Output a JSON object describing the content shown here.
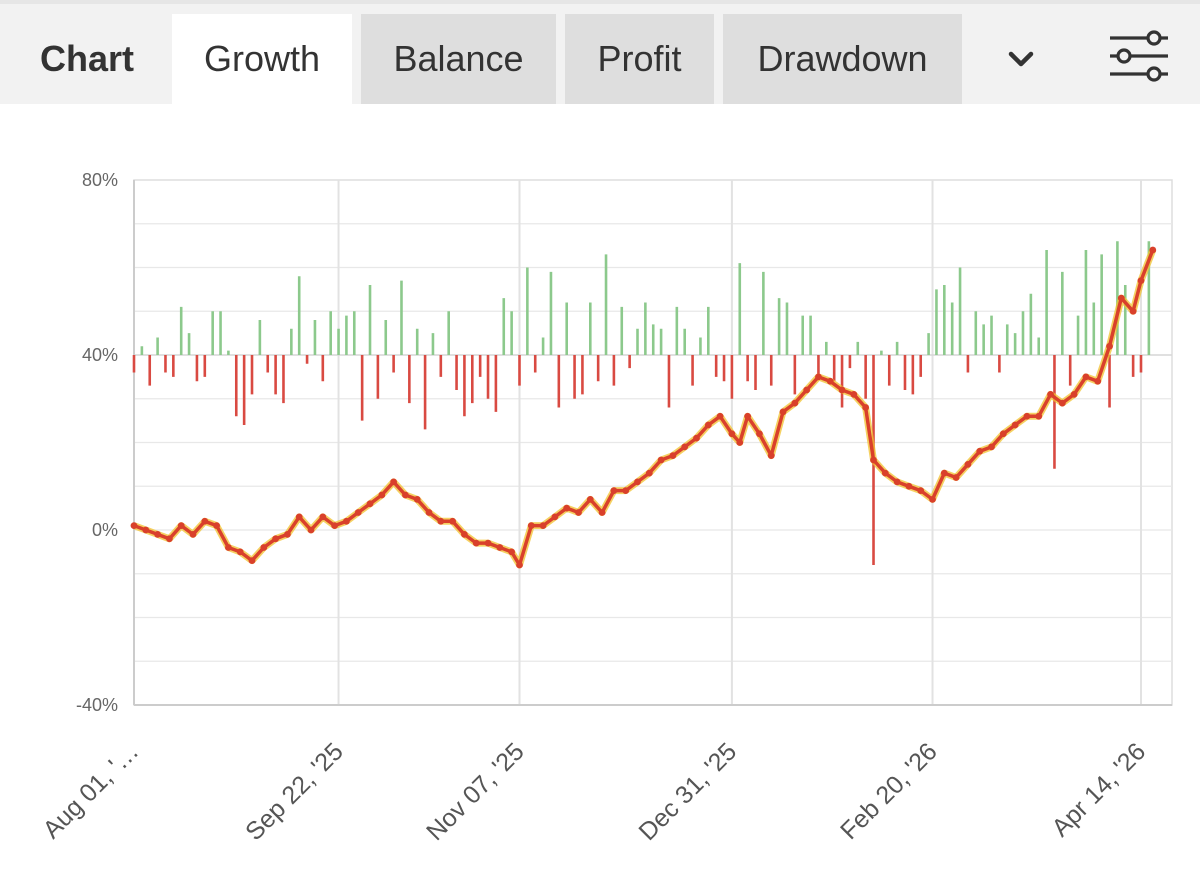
{
  "header": {
    "chart_label": "Chart",
    "tabs": [
      {
        "label": "Growth",
        "active": true
      },
      {
        "label": "Balance",
        "active": false
      },
      {
        "label": "Profit",
        "active": false
      },
      {
        "label": "Drawdown",
        "active": false
      }
    ],
    "more_icon": "chevron-down-icon",
    "settings_icon": "sliders-icon"
  },
  "colors": {
    "growth_line": "#d9402b",
    "equity_line": "#f2c12e",
    "positive_bar": "#8cc98c",
    "negative_bar": "#d94a42",
    "grid": "#e8e8e8"
  },
  "chart_data": {
    "type": "line",
    "ylim": [
      -40,
      80
    ],
    "y_ticks": [
      "80%",
      "40%",
      "0%",
      "-40%"
    ],
    "y_tick_values": [
      80,
      40,
      0,
      -40
    ],
    "x_ticks": [
      "Aug 01, '…",
      "Sep 22, '25",
      "Nov 07, '25",
      "Dec 31, '25",
      "Feb 20, '26",
      "Apr 14, '26"
    ],
    "x_tick_dates": [
      "2025-08-01",
      "2025-09-22",
      "2025-11-07",
      "2025-12-31",
      "2026-02-20",
      "2026-04-14"
    ],
    "x_range": [
      "2025-08-01",
      "2026-04-17"
    ],
    "grid": true,
    "series": [
      {
        "points": [
          [
            "2025-08-01",
            1
          ],
          [
            "2025-08-04",
            0
          ],
          [
            "2025-08-07",
            -1
          ],
          [
            "2025-08-10",
            -2
          ],
          [
            "2025-08-13",
            1
          ],
          [
            "2025-08-16",
            -1
          ],
          [
            "2025-08-19",
            2
          ],
          [
            "2025-08-22",
            1
          ],
          [
            "2025-08-25",
            -4
          ],
          [
            "2025-08-28",
            -5
          ],
          [
            "2025-08-31",
            -7
          ],
          [
            "2025-09-03",
            -4
          ],
          [
            "2025-09-06",
            -2
          ],
          [
            "2025-09-09",
            -1
          ],
          [
            "2025-09-12",
            3
          ],
          [
            "2025-09-15",
            0
          ],
          [
            "2025-09-18",
            3
          ],
          [
            "2025-09-21",
            1
          ],
          [
            "2025-09-24",
            2
          ],
          [
            "2025-09-27",
            4
          ],
          [
            "2025-09-30",
            6
          ],
          [
            "2025-10-03",
            8
          ],
          [
            "2025-10-06",
            11
          ],
          [
            "2025-10-09",
            8
          ],
          [
            "2025-10-12",
            7
          ],
          [
            "2025-10-15",
            4
          ],
          [
            "2025-10-18",
            2
          ],
          [
            "2025-10-21",
            2
          ],
          [
            "2025-10-24",
            -1
          ],
          [
            "2025-10-27",
            -3
          ],
          [
            "2025-10-30",
            -3
          ],
          [
            "2025-11-02",
            -4
          ],
          [
            "2025-11-05",
            -5
          ],
          [
            "2025-11-07",
            -8
          ],
          [
            "2025-11-10",
            1
          ],
          [
            "2025-11-13",
            1
          ],
          [
            "2025-11-16",
            3
          ],
          [
            "2025-11-19",
            5
          ],
          [
            "2025-11-22",
            4
          ],
          [
            "2025-11-25",
            7
          ],
          [
            "2025-11-28",
            4
          ],
          [
            "2025-12-01",
            9
          ],
          [
            "2025-12-04",
            9
          ],
          [
            "2025-12-07",
            11
          ],
          [
            "2025-12-10",
            13
          ],
          [
            "2025-12-13",
            16
          ],
          [
            "2025-12-16",
            17
          ],
          [
            "2025-12-19",
            19
          ],
          [
            "2025-12-22",
            21
          ],
          [
            "2025-12-25",
            24
          ],
          [
            "2025-12-28",
            26
          ],
          [
            "2025-12-31",
            22
          ],
          [
            "2026-01-02",
            20
          ],
          [
            "2026-01-04",
            26
          ],
          [
            "2026-01-07",
            22
          ],
          [
            "2026-01-10",
            17
          ],
          [
            "2026-01-13",
            27
          ],
          [
            "2026-01-16",
            29
          ],
          [
            "2026-01-19",
            32
          ],
          [
            "2026-01-22",
            35
          ],
          [
            "2026-01-25",
            34
          ],
          [
            "2026-01-28",
            32
          ],
          [
            "2026-01-31",
            31
          ],
          [
            "2026-02-03",
            28
          ],
          [
            "2026-02-05",
            16
          ],
          [
            "2026-02-08",
            13
          ],
          [
            "2026-02-11",
            11
          ],
          [
            "2026-02-14",
            10
          ],
          [
            "2026-02-17",
            9
          ],
          [
            "2026-02-20",
            7
          ],
          [
            "2026-02-23",
            13
          ],
          [
            "2026-02-26",
            12
          ],
          [
            "2026-03-01",
            15
          ],
          [
            "2026-03-04",
            18
          ],
          [
            "2026-03-07",
            19
          ],
          [
            "2026-03-10",
            22
          ],
          [
            "2026-03-13",
            24
          ],
          [
            "2026-03-16",
            26
          ],
          [
            "2026-03-19",
            26
          ],
          [
            "2026-03-22",
            31
          ],
          [
            "2026-03-25",
            29
          ],
          [
            "2026-03-28",
            31
          ],
          [
            "2026-03-31",
            35
          ],
          [
            "2026-04-03",
            34
          ],
          [
            "2026-04-06",
            42
          ],
          [
            "2026-04-09",
            53
          ],
          [
            "2026-04-12",
            50
          ],
          [
            "2026-04-14",
            57
          ],
          [
            "2026-04-17",
            64
          ]
        ]
      }
    ],
    "bars": [
      [
        "2025-08-01",
        -4
      ],
      [
        "2025-08-03",
        2
      ],
      [
        "2025-08-05",
        -7
      ],
      [
        "2025-08-07",
        4
      ],
      [
        "2025-08-09",
        -4
      ],
      [
        "2025-08-11",
        -5
      ],
      [
        "2025-08-13",
        11
      ],
      [
        "2025-08-15",
        5
      ],
      [
        "2025-08-17",
        -6
      ],
      [
        "2025-08-19",
        -5
      ],
      [
        "2025-08-21",
        10
      ],
      [
        "2025-08-23",
        10
      ],
      [
        "2025-08-25",
        1
      ],
      [
        "2025-08-27",
        -14
      ],
      [
        "2025-08-29",
        -16
      ],
      [
        "2025-08-31",
        -9
      ],
      [
        "2025-09-02",
        8
      ],
      [
        "2025-09-04",
        -4
      ],
      [
        "2025-09-06",
        -9
      ],
      [
        "2025-09-08",
        -11
      ],
      [
        "2025-09-10",
        6
      ],
      [
        "2025-09-12",
        18
      ],
      [
        "2025-09-14",
        -2
      ],
      [
        "2025-09-16",
        8
      ],
      [
        "2025-09-18",
        -6
      ],
      [
        "2025-09-20",
        10
      ],
      [
        "2025-09-22",
        6
      ],
      [
        "2025-09-24",
        9
      ],
      [
        "2025-09-26",
        10
      ],
      [
        "2025-09-28",
        -15
      ],
      [
        "2025-09-30",
        16
      ],
      [
        "2025-10-02",
        -10
      ],
      [
        "2025-10-04",
        8
      ],
      [
        "2025-10-06",
        -4
      ],
      [
        "2025-10-08",
        17
      ],
      [
        "2025-10-10",
        -11
      ],
      [
        "2025-10-12",
        6
      ],
      [
        "2025-10-14",
        -17
      ],
      [
        "2025-10-16",
        5
      ],
      [
        "2025-10-18",
        -5
      ],
      [
        "2025-10-20",
        10
      ],
      [
        "2025-10-22",
        -8
      ],
      [
        "2025-10-24",
        -14
      ],
      [
        "2025-10-26",
        -11
      ],
      [
        "2025-10-28",
        -5
      ],
      [
        "2025-10-30",
        -10
      ],
      [
        "2025-11-01",
        -13
      ],
      [
        "2025-11-03",
        13
      ],
      [
        "2025-11-05",
        10
      ],
      [
        "2025-11-07",
        -7
      ],
      [
        "2025-11-09",
        20
      ],
      [
        "2025-11-11",
        -4
      ],
      [
        "2025-11-13",
        4
      ],
      [
        "2025-11-15",
        19
      ],
      [
        "2025-11-17",
        -12
      ],
      [
        "2025-11-19",
        12
      ],
      [
        "2025-11-21",
        -10
      ],
      [
        "2025-11-23",
        -9
      ],
      [
        "2025-11-25",
        12
      ],
      [
        "2025-11-27",
        -6
      ],
      [
        "2025-11-29",
        23
      ],
      [
        "2025-12-01",
        -7
      ],
      [
        "2025-12-03",
        11
      ],
      [
        "2025-12-05",
        -3
      ],
      [
        "2025-12-07",
        6
      ],
      [
        "2025-12-09",
        12
      ],
      [
        "2025-12-11",
        7
      ],
      [
        "2025-12-13",
        6
      ],
      [
        "2025-12-15",
        -12
      ],
      [
        "2025-12-17",
        11
      ],
      [
        "2025-12-19",
        6
      ],
      [
        "2025-12-21",
        -7
      ],
      [
        "2025-12-23",
        4
      ],
      [
        "2025-12-25",
        11
      ],
      [
        "2025-12-27",
        -5
      ],
      [
        "2025-12-29",
        -6
      ],
      [
        "2025-12-31",
        -10
      ],
      [
        "2026-01-02",
        21
      ],
      [
        "2026-01-04",
        -6
      ],
      [
        "2026-01-06",
        -8
      ],
      [
        "2026-01-08",
        19
      ],
      [
        "2026-01-10",
        -7
      ],
      [
        "2026-01-12",
        13
      ],
      [
        "2026-01-14",
        12
      ],
      [
        "2026-01-16",
        -9
      ],
      [
        "2026-01-18",
        9
      ],
      [
        "2026-01-20",
        9
      ],
      [
        "2026-01-22",
        -5
      ],
      [
        "2026-01-24",
        3
      ],
      [
        "2026-01-26",
        -6
      ],
      [
        "2026-01-28",
        -12
      ],
      [
        "2026-01-30",
        -3
      ],
      [
        "2026-02-01",
        3
      ],
      [
        "2026-02-03",
        -10
      ],
      [
        "2026-02-05",
        -48
      ],
      [
        "2026-02-07",
        1
      ],
      [
        "2026-02-09",
        -7
      ],
      [
        "2026-02-11",
        3
      ],
      [
        "2026-02-13",
        -8
      ],
      [
        "2026-02-15",
        -9
      ],
      [
        "2026-02-17",
        -5
      ],
      [
        "2026-02-19",
        5
      ],
      [
        "2026-02-21",
        15
      ],
      [
        "2026-02-23",
        16
      ],
      [
        "2026-02-25",
        12
      ],
      [
        "2026-02-27",
        20
      ],
      [
        "2026-03-01",
        -4
      ],
      [
        "2026-03-03",
        10
      ],
      [
        "2026-03-05",
        7
      ],
      [
        "2026-03-07",
        9
      ],
      [
        "2026-03-09",
        -4
      ],
      [
        "2026-03-11",
        7
      ],
      [
        "2026-03-13",
        5
      ],
      [
        "2026-03-15",
        10
      ],
      [
        "2026-03-17",
        14
      ],
      [
        "2026-03-19",
        4
      ],
      [
        "2026-03-21",
        24
      ],
      [
        "2026-03-23",
        -26
      ],
      [
        "2026-03-25",
        19
      ],
      [
        "2026-03-27",
        -7
      ],
      [
        "2026-03-29",
        9
      ],
      [
        "2026-03-31",
        24
      ],
      [
        "2026-04-02",
        12
      ],
      [
        "2026-04-04",
        23
      ],
      [
        "2026-04-06",
        -12
      ],
      [
        "2026-04-08",
        26
      ],
      [
        "2026-04-10",
        16
      ],
      [
        "2026-04-12",
        -5
      ],
      [
        "2026-04-14",
        -4
      ],
      [
        "2026-04-16",
        26
      ]
    ]
  }
}
